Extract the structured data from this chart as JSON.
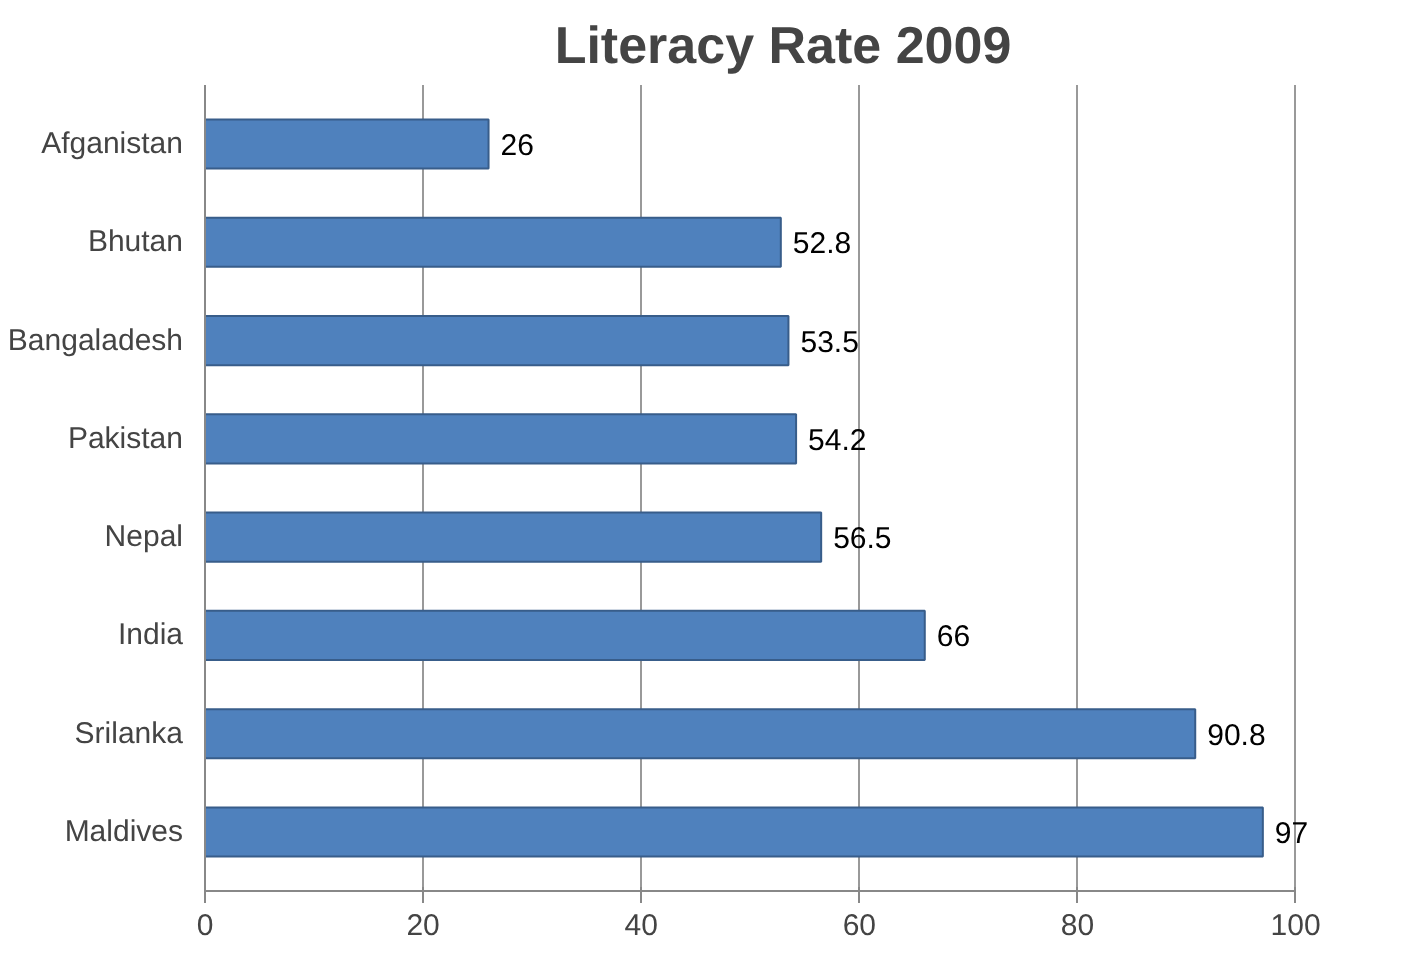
{
  "chart_data": {
    "type": "bar",
    "orientation": "horizontal",
    "title": "Literacy Rate 2009",
    "categories": [
      "Afganistan",
      "Bhutan",
      "Bangaladesh",
      "Pakistan",
      "Nepal",
      "India",
      "Srilanka",
      "Maldives"
    ],
    "values": [
      26,
      52.8,
      53.5,
      54.2,
      56.5,
      66,
      90.8,
      97
    ],
    "color": "#4f81bd",
    "xlim": [
      0,
      100
    ],
    "xticks": [
      0,
      20,
      40,
      60,
      80,
      100
    ],
    "grid": "x",
    "data_labels": true
  }
}
